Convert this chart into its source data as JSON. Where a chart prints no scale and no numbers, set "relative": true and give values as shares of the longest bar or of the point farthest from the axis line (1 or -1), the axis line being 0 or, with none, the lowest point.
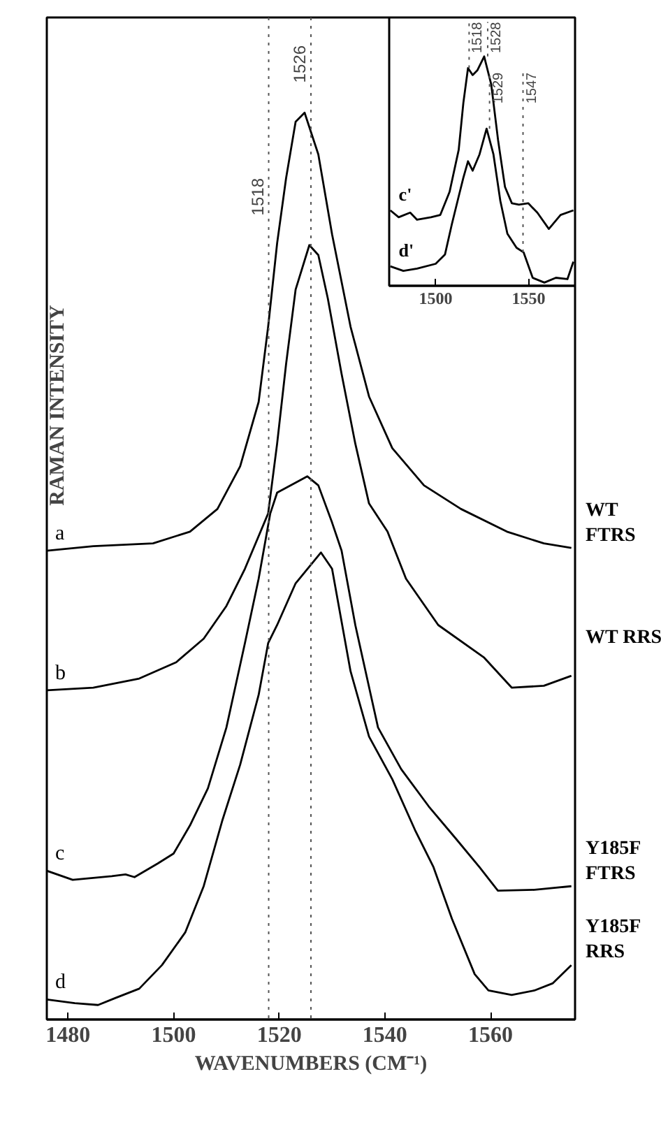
{
  "chart_data": [
    {
      "type": "line",
      "relative": true,
      "xlabel": "WAVENUMBERS (CM⁻¹)",
      "ylabel": "RAMAN INTENSITY",
      "xlim": [
        1476,
        1576
      ],
      "xticks": [
        1480,
        1500,
        1520,
        1540,
        1560
      ],
      "grid": false,
      "line_style": "solid",
      "marker": "none",
      "series": [
        {
          "name": "a",
          "color": "#000000",
          "x": [
            1476,
            1484.8,
            1496.1,
            1503.1,
            1508.3,
            1512.6,
            1516.1,
            1517.9,
            1519.6,
            1521.3,
            1523.1,
            1524.8,
            1527.4,
            1530,
            1533.5,
            1537,
            1541.4,
            1547.4,
            1554.4,
            1563.1,
            1570.1,
            1575.3
          ],
          "values": [
            0.517,
            0.522,
            0.525,
            0.538,
            0.563,
            0.61,
            0.681,
            0.764,
            0.856,
            0.928,
            0.99,
            1,
            0.954,
            0.866,
            0.764,
            0.687,
            0.63,
            0.589,
            0.563,
            0.538,
            0.525,
            0.52
          ]
        },
        {
          "name": "b",
          "color": "#000000",
          "x": [
            1476,
            1484.8,
            1493.5,
            1500.5,
            1505.7,
            1510,
            1513.5,
            1517.9,
            1519.6,
            1521.3,
            1523.1,
            1525.7,
            1527.4,
            1529.2,
            1531.8,
            1534.4,
            1537,
            1540.5,
            1544,
            1550.1,
            1558.8,
            1564,
            1570.1,
            1575.3
          ],
          "values": [
            0.363,
            0.366,
            0.376,
            0.394,
            0.42,
            0.456,
            0.497,
            0.558,
            0.635,
            0.723,
            0.805,
            0.854,
            0.843,
            0.795,
            0.712,
            0.635,
            0.569,
            0.538,
            0.486,
            0.435,
            0.399,
            0.366,
            0.368,
            0.379
          ]
        },
        {
          "name": "c",
          "color": "#000000",
          "x": [
            1476,
            1480.9,
            1488.3,
            1490.9,
            1492.6,
            1497,
            1500,
            1503.1,
            1506.5,
            1510,
            1513.5,
            1516.1,
            1518.3,
            1519.6,
            1523.1,
            1525.3,
            1527.4,
            1530,
            1531.8,
            1534.4,
            1538.7,
            1543.1,
            1548.3,
            1553.5,
            1557.9,
            1561.4,
            1568.3,
            1575.3
          ],
          "values": [
            0.164,
            0.154,
            0.158,
            0.16,
            0.157,
            0.172,
            0.183,
            0.214,
            0.255,
            0.322,
            0.415,
            0.486,
            0.558,
            0.581,
            0.592,
            0.599,
            0.589,
            0.548,
            0.517,
            0.435,
            0.322,
            0.276,
            0.235,
            0.199,
            0.168,
            0.142,
            0.143,
            0.147
          ]
        },
        {
          "name": "d",
          "color": "#000000",
          "x": [
            1476,
            1481.3,
            1485.7,
            1489.1,
            1493.5,
            1497.8,
            1502.2,
            1505.7,
            1509.2,
            1512.6,
            1516.1,
            1517.9,
            1519.6,
            1523.1,
            1527.9,
            1530,
            1533.5,
            1537,
            1541.4,
            1545.7,
            1549.2,
            1552.7,
            1557,
            1559.6,
            1564,
            1568.3,
            1571.8,
            1575.3
          ],
          "values": [
            0.022,
            0.018,
            0.016,
            0.024,
            0.034,
            0.06,
            0.096,
            0.147,
            0.219,
            0.281,
            0.358,
            0.415,
            0.435,
            0.481,
            0.515,
            0.497,
            0.384,
            0.312,
            0.265,
            0.209,
            0.168,
            0.111,
            0.05,
            0.032,
            0.027,
            0.032,
            0.04,
            0.06
          ]
        }
      ],
      "ref_lines": [
        {
          "axis": "x",
          "value": 1526,
          "label": "1526",
          "line_style": "dotted",
          "color": "#555555"
        },
        {
          "axis": "x",
          "value": 1518,
          "label": "1518",
          "line_style": "dotted",
          "color": "#555555"
        }
      ],
      "annotations": [
        {
          "text": "WT FTRS",
          "x": 1575.3,
          "y": 0.52
        },
        {
          "text": "WT RRS",
          "x": 1575.3,
          "y": 0.379
        },
        {
          "text": "Y185F FTRS",
          "x": 1575.3,
          "y": 0.147
        },
        {
          "text": "Y185F RRS",
          "x": 1575.3,
          "y": 0.06
        }
      ]
    },
    {
      "type": "line",
      "relative": true,
      "xlim": [
        1475,
        1575
      ],
      "xticks": [
        1500,
        1550
      ],
      "grid": false,
      "line_style": "solid",
      "marker": "none",
      "series": [
        {
          "name": "c'",
          "color": "#000000",
          "x": [
            1475.6,
            1480.1,
            1486.3,
            1490,
            1497.5,
            1502.5,
            1507.5,
            1512.4,
            1514.9,
            1517.4,
            1519.9,
            1522.4,
            1526.1,
            1529.9,
            1533.6,
            1537.3,
            1541,
            1544.8,
            1549.8,
            1554.7,
            1560.9,
            1567.2,
            1574.1
          ],
          "values": [
            0.329,
            0.299,
            0.319,
            0.288,
            0.299,
            0.309,
            0.41,
            0.593,
            0.797,
            0.949,
            0.919,
            0.939,
            1,
            0.878,
            0.634,
            0.431,
            0.36,
            0.354,
            0.36,
            0.319,
            0.248,
            0.309,
            0.329
          ]
        },
        {
          "name": "d'",
          "color": "#000000",
          "x": [
            1475.6,
            1482.6,
            1490,
            1500,
            1505,
            1508.7,
            1512.4,
            1514.9,
            1517.4,
            1519.9,
            1523.6,
            1527.4,
            1531.1,
            1534.8,
            1538.6,
            1543.5,
            1547.3,
            1552.2,
            1558.5,
            1564.7,
            1570.9,
            1574.1
          ],
          "values": [
            0.085,
            0.065,
            0.075,
            0.096,
            0.136,
            0.268,
            0.39,
            0.471,
            0.543,
            0.502,
            0.573,
            0.685,
            0.573,
            0.37,
            0.227,
            0.166,
            0.146,
            0.035,
            0.014,
            0.035,
            0.029,
            0.105
          ]
        }
      ],
      "annotations": [
        {
          "text": "1518",
          "x": 1518,
          "y": 0.949
        },
        {
          "text": "1528",
          "x": 1528,
          "y": 1
        },
        {
          "text": "1529",
          "x": 1529,
          "y": 0.685
        },
        {
          "text": "1547",
          "x": 1547,
          "y": 0.146
        }
      ]
    }
  ]
}
